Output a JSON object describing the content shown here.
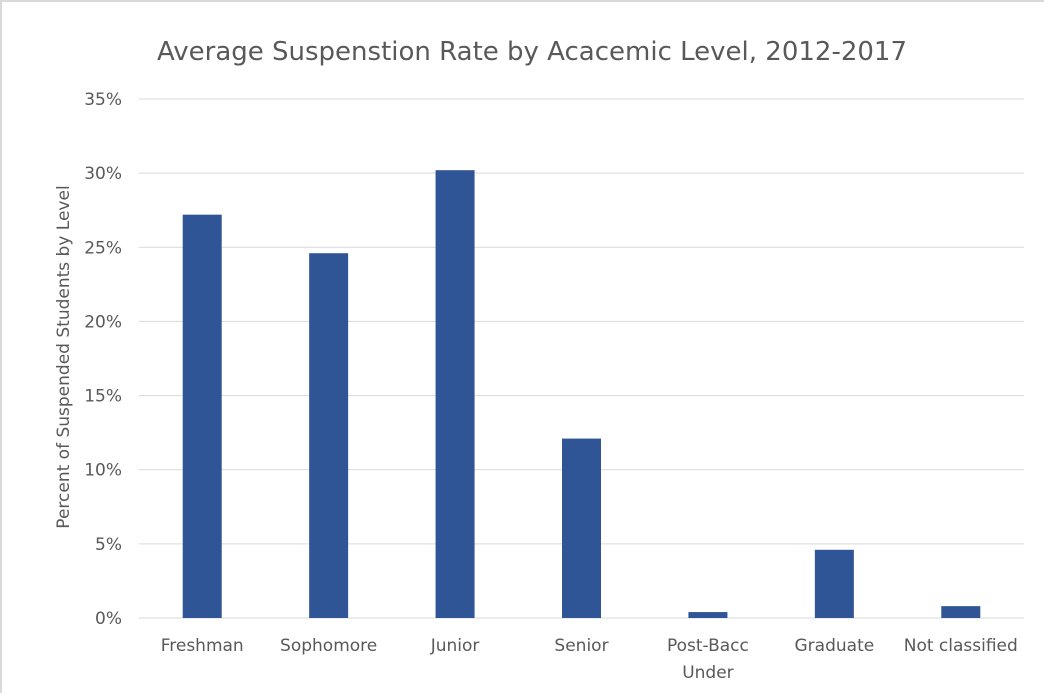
{
  "chart_data": {
    "type": "bar",
    "title": "Average Suspenstion Rate by Acacemic Level, 2012-2017",
    "ylabel": "Percent of Suspended Students by Level",
    "xlabel": "",
    "categories": [
      "Freshman",
      "Sophomore",
      "Junior",
      "Senior",
      "Post-Bacc Under",
      "Graduate",
      "Not classified"
    ],
    "category_lines": [
      [
        "Freshman"
      ],
      [
        "Sophomore"
      ],
      [
        "Junior"
      ],
      [
        "Senior"
      ],
      [
        "Post-Bacc",
        "Under"
      ],
      [
        "Graduate"
      ],
      [
        "Not classified"
      ]
    ],
    "values": [
      27.2,
      24.6,
      30.2,
      12.1,
      0.4,
      4.6,
      0.8
    ],
    "ylim": [
      0,
      35
    ],
    "y_ticks": [
      0,
      5,
      10,
      15,
      20,
      25,
      30,
      35
    ],
    "y_tick_labels": [
      "0%",
      "5%",
      "10%",
      "15%",
      "20%",
      "25%",
      "30%",
      "35%"
    ],
    "grid": true,
    "legend": "none",
    "colors": {
      "bar": "#2f5597",
      "grid": "#d9d9d9",
      "text": "#595959"
    }
  }
}
